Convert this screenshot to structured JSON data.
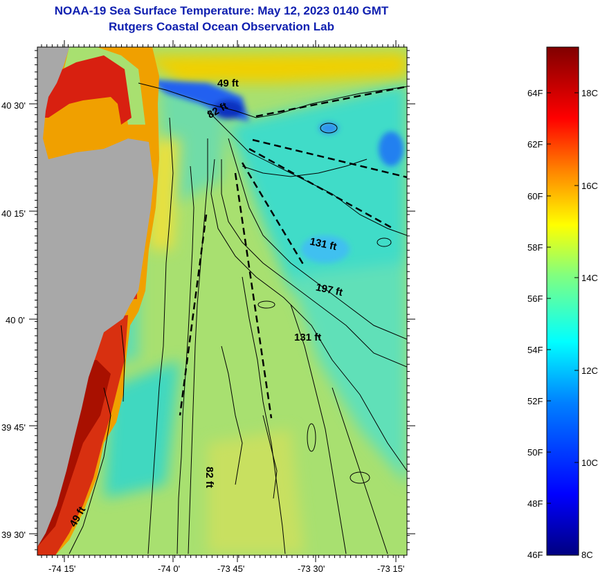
{
  "title": "NOAA-19 Sea Surface Temperature:  May 12, 2023 0140 GMT",
  "subtitle": "Rutgers Coastal Ocean Observation Lab",
  "map": {
    "x_ticks": [
      "-74 15'",
      "-74 0'",
      "-73 45'",
      "-73 30'",
      "-73 15'"
    ],
    "y_ticks": [
      "40 30'",
      "40 15'",
      "40 0'",
      "39 45'",
      "39 30'"
    ],
    "depth_labels": [
      "49 ft",
      "82 ft",
      "131 ft",
      "197 ft",
      "131 ft",
      "82 ft",
      "49 ft"
    ],
    "colors": {
      "land": "#a8a8a8",
      "coast_warm": "#d82010",
      "shelf_water": "#b8e060",
      "offshore_water": "#40dcc8",
      "cold_patch": "#1840e0"
    }
  },
  "colorbar": {
    "fahrenheit_labels": [
      "64F",
      "62F",
      "60F",
      "58F",
      "56F",
      "54F",
      "52F",
      "50F",
      "48F",
      "46F"
    ],
    "celsius_labels": [
      "18C",
      "16C",
      "14C",
      "12C",
      "10C",
      "8C"
    ],
    "colors": [
      "#800000",
      "#ff0000",
      "#ff8000",
      "#ffff00",
      "#80ff80",
      "#00ffff",
      "#0080ff",
      "#0000ff",
      "#000080"
    ]
  }
}
